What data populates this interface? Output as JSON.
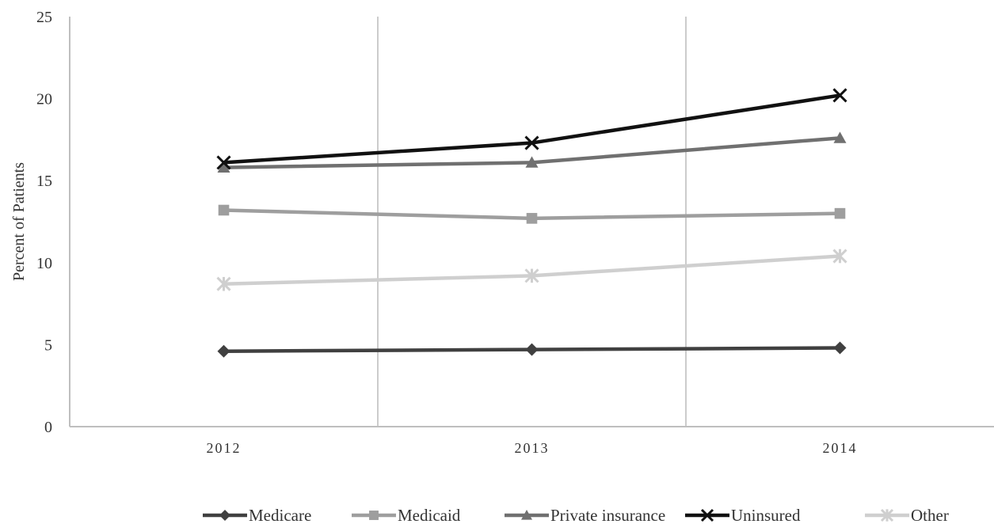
{
  "chart_data": {
    "type": "line",
    "title": "",
    "xlabel": "",
    "ylabel": "Percent of Patients",
    "categories": [
      "2012",
      "2013",
      "2014"
    ],
    "ylim": [
      0,
      25
    ],
    "yticks": [
      "0",
      "5",
      "10",
      "15",
      "20",
      "25"
    ],
    "grid": "vertical separators between categories",
    "legend_position": "bottom",
    "series": [
      {
        "name": "Medicare",
        "values": [
          4.6,
          4.7,
          4.8
        ],
        "color": "#404040",
        "marker": "diamond-icon"
      },
      {
        "name": "Medicaid",
        "values": [
          13.2,
          12.7,
          13.0
        ],
        "color": "#9e9e9e",
        "marker": "square-icon"
      },
      {
        "name": "Private insurance",
        "values": [
          15.8,
          16.1,
          17.6
        ],
        "color": "#707070",
        "marker": "triangle-icon"
      },
      {
        "name": "Uninsured",
        "values": [
          16.1,
          17.3,
          20.2
        ],
        "color": "#111111",
        "marker": "x-icon"
      },
      {
        "name": "Other",
        "values": [
          8.7,
          9.2,
          10.4
        ],
        "color": "#cfcfcf",
        "marker": "asterisk-icon"
      }
    ]
  }
}
